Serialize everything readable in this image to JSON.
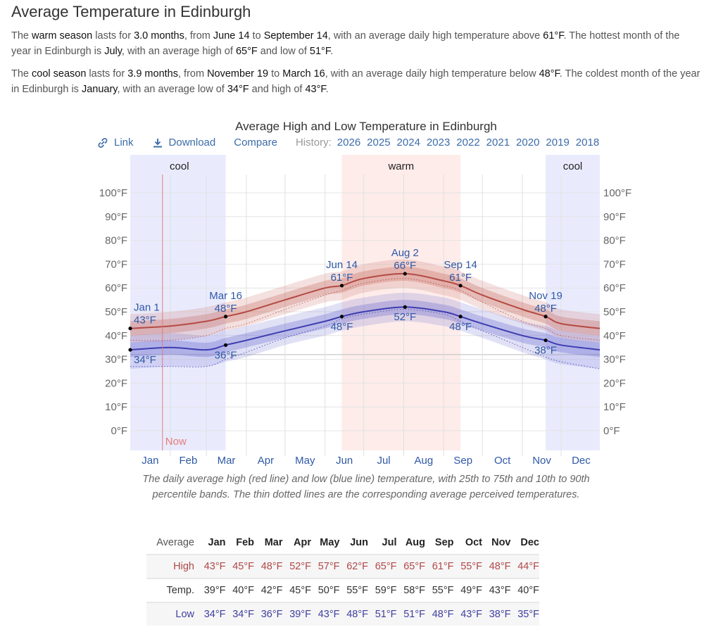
{
  "page": {
    "title": "Average Temperature in Edinburgh",
    "warm_paragraph": [
      {
        "t": "The ",
        "b": false
      },
      {
        "t": "warm season",
        "b": true
      },
      {
        "t": " lasts for ",
        "b": false
      },
      {
        "t": "3.0 months",
        "b": true
      },
      {
        "t": ", from ",
        "b": false
      },
      {
        "t": "June 14",
        "b": true
      },
      {
        "t": " to ",
        "b": false
      },
      {
        "t": "September 14",
        "b": true
      },
      {
        "t": ", with an average daily high temperature above ",
        "b": false
      },
      {
        "t": "61°F",
        "b": true
      },
      {
        "t": ". The hottest month of the year in Edinburgh is ",
        "b": false
      },
      {
        "t": "July",
        "b": true
      },
      {
        "t": ", with an average high of ",
        "b": false
      },
      {
        "t": "65°F",
        "b": true
      },
      {
        "t": " and low of ",
        "b": false
      },
      {
        "t": "51°F",
        "b": true
      },
      {
        "t": ".",
        "b": false
      }
    ],
    "cool_paragraph": [
      {
        "t": "The ",
        "b": false
      },
      {
        "t": "cool season",
        "b": true
      },
      {
        "t": " lasts for ",
        "b": false
      },
      {
        "t": "3.9 months",
        "b": true
      },
      {
        "t": ", from ",
        "b": false
      },
      {
        "t": "November 19",
        "b": true
      },
      {
        "t": " to ",
        "b": false
      },
      {
        "t": "March 16",
        "b": true
      },
      {
        "t": ", with an average daily high temperature below ",
        "b": false
      },
      {
        "t": "48°F",
        "b": true
      },
      {
        "t": ". The coldest month of the year in Edinburgh is ",
        "b": false
      },
      {
        "t": "January",
        "b": true
      },
      {
        "t": ", with an average low of ",
        "b": false
      },
      {
        "t": "34°F",
        "b": true
      },
      {
        "t": " and high of ",
        "b": false
      },
      {
        "t": "43°F",
        "b": true
      },
      {
        "t": ".",
        "b": false
      }
    ]
  },
  "toolbar": {
    "link_label": "Link",
    "download_label": "Download",
    "compare_label": "Compare",
    "history_label": "History:",
    "years": [
      "2026",
      "2025",
      "2024",
      "2023",
      "2022",
      "2021",
      "2020",
      "2019",
      "2018"
    ]
  },
  "chart_data": {
    "type": "line",
    "title": "Average High and Low Temperature in Edinburgh",
    "xlabel": "",
    "ylabel": "",
    "ylim": [
      0,
      100
    ],
    "y_ticks": [
      "0°F",
      "10°F",
      "20°F",
      "30°F",
      "40°F",
      "50°F",
      "60°F",
      "70°F",
      "80°F",
      "90°F",
      "100°F"
    ],
    "y_tick_values": [
      0,
      10,
      20,
      30,
      40,
      50,
      60,
      70,
      80,
      90,
      100
    ],
    "x_ticks": [
      "Jan",
      "Feb",
      "Mar",
      "Apr",
      "May",
      "Jun",
      "Jul",
      "Aug",
      "Sep",
      "Oct",
      "Nov",
      "Dec"
    ],
    "grid": true,
    "colors": {
      "high": "#b54a44",
      "low": "#3d3db0",
      "cool_band": "#e9ebfd",
      "warm_band": "#fdecea",
      "now": "#e57a7a",
      "label": "#2f58a6"
    },
    "seasons": [
      {
        "label": "cool",
        "start_day": 1,
        "end_day": 75
      },
      {
        "label": "warm",
        "start_day": 165,
        "end_day": 257
      },
      {
        "label": "cool",
        "start_day": 323,
        "end_day": 365
      }
    ],
    "now_label": "Now",
    "now_day": 26,
    "series": [
      {
        "name": "Average high",
        "x_day": [
          1,
          32,
          60,
          75,
          91,
          121,
          152,
          165,
          182,
          214,
          244,
          257,
          274,
          305,
          323,
          335,
          365
        ],
        "values": [
          43,
          44,
          46,
          48,
          50,
          55,
          60,
          61,
          64,
          66,
          63,
          61,
          57,
          51,
          48,
          45,
          43
        ],
        "p25": [
          40,
          41,
          43,
          45,
          47,
          52,
          57,
          58,
          61,
          63,
          60,
          58,
          54,
          48,
          45,
          42,
          40
        ],
        "p75": [
          46,
          47,
          49,
          51,
          53,
          58,
          63,
          64,
          67,
          69,
          66,
          64,
          60,
          54,
          51,
          48,
          46
        ],
        "p10": [
          37,
          38,
          40,
          42,
          44,
          49,
          54,
          55,
          58,
          60,
          57,
          55,
          51,
          45,
          42,
          39,
          37
        ],
        "p90": [
          49,
          50,
          52,
          54,
          56,
          61,
          66,
          67,
          70,
          72,
          69,
          67,
          63,
          57,
          54,
          51,
          49
        ],
        "perceived": [
          38,
          38,
          40,
          43,
          45,
          51,
          57,
          59,
          62,
          64,
          61,
          59,
          54,
          46,
          43,
          40,
          38
        ]
      },
      {
        "name": "Average low",
        "x_day": [
          1,
          32,
          60,
          75,
          91,
          121,
          152,
          165,
          182,
          214,
          244,
          257,
          274,
          305,
          323,
          335,
          365
        ],
        "values": [
          34,
          35,
          34,
          36,
          38,
          42,
          46,
          48,
          50,
          52,
          50,
          48,
          45,
          40,
          38,
          36,
          34
        ],
        "p25": [
          31,
          32,
          31,
          33,
          35,
          39,
          43,
          45,
          47,
          49,
          47,
          45,
          42,
          37,
          35,
          33,
          31
        ],
        "p75": [
          37,
          38,
          37,
          39,
          41,
          45,
          49,
          51,
          53,
          55,
          53,
          51,
          48,
          43,
          41,
          39,
          37
        ],
        "p10": [
          26,
          27,
          27,
          29,
          31,
          36,
          40,
          42,
          44,
          46,
          44,
          42,
          39,
          33,
          30,
          28,
          26
        ],
        "p90": [
          40,
          41,
          40,
          42,
          44,
          48,
          52,
          54,
          56,
          58,
          56,
          54,
          51,
          46,
          44,
          42,
          40
        ],
        "perceived": [
          27,
          27,
          27,
          30,
          33,
          39,
          44,
          47,
          49,
          51,
          49,
          46,
          42,
          35,
          31,
          29,
          26
        ]
      }
    ],
    "annotations": [
      {
        "series": "high",
        "day": 1,
        "value": 43,
        "date": "Jan 1",
        "label": "43°F",
        "pos": "above-right"
      },
      {
        "series": "low",
        "day": 1,
        "value": 34,
        "date": "",
        "label": "34°F",
        "pos": "below-right"
      },
      {
        "series": "high",
        "day": 75,
        "value": 48,
        "date": "Mar 16",
        "label": "48°F",
        "pos": "above"
      },
      {
        "series": "low",
        "day": 75,
        "value": 36,
        "date": "",
        "label": "36°F",
        "pos": "below"
      },
      {
        "series": "high",
        "day": 165,
        "value": 61,
        "date": "Jun 14",
        "label": "61°F",
        "pos": "above"
      },
      {
        "series": "low",
        "day": 165,
        "value": 48,
        "date": "",
        "label": "48°F",
        "pos": "below"
      },
      {
        "series": "high",
        "day": 214,
        "value": 66,
        "date": "Aug 2",
        "label": "66°F",
        "pos": "above"
      },
      {
        "series": "low",
        "day": 214,
        "value": 52,
        "date": "",
        "label": "52°F",
        "pos": "below"
      },
      {
        "series": "high",
        "day": 257,
        "value": 61,
        "date": "Sep 14",
        "label": "61°F",
        "pos": "above"
      },
      {
        "series": "low",
        "day": 257,
        "value": 48,
        "date": "",
        "label": "48°F",
        "pos": "below"
      },
      {
        "series": "high",
        "day": 323,
        "value": 48,
        "date": "Nov 19",
        "label": "48°F",
        "pos": "above"
      },
      {
        "series": "low",
        "day": 323,
        "value": 38,
        "date": "",
        "label": "38°F",
        "pos": "below"
      }
    ]
  },
  "caption": "The daily average high (red line) and low (blue line) temperature, with 25th to 75th and 10th to 90th percentile bands. The thin dotted lines are the corresponding average perceived temperatures.",
  "table": {
    "header_label": "Average",
    "months": [
      "Jan",
      "Feb",
      "Mar",
      "Apr",
      "May",
      "Jun",
      "Jul",
      "Aug",
      "Sep",
      "Oct",
      "Nov",
      "Dec"
    ],
    "rows": [
      {
        "label": "High",
        "values": [
          "43°F",
          "45°F",
          "48°F",
          "52°F",
          "57°F",
          "62°F",
          "65°F",
          "65°F",
          "61°F",
          "55°F",
          "48°F",
          "44°F"
        ]
      },
      {
        "label": "Temp.",
        "values": [
          "39°F",
          "40°F",
          "42°F",
          "45°F",
          "50°F",
          "55°F",
          "59°F",
          "58°F",
          "55°F",
          "49°F",
          "43°F",
          "40°F"
        ]
      },
      {
        "label": "Low",
        "values": [
          "34°F",
          "34°F",
          "36°F",
          "39°F",
          "43°F",
          "48°F",
          "51°F",
          "51°F",
          "48°F",
          "43°F",
          "38°F",
          "35°F"
        ]
      }
    ]
  }
}
